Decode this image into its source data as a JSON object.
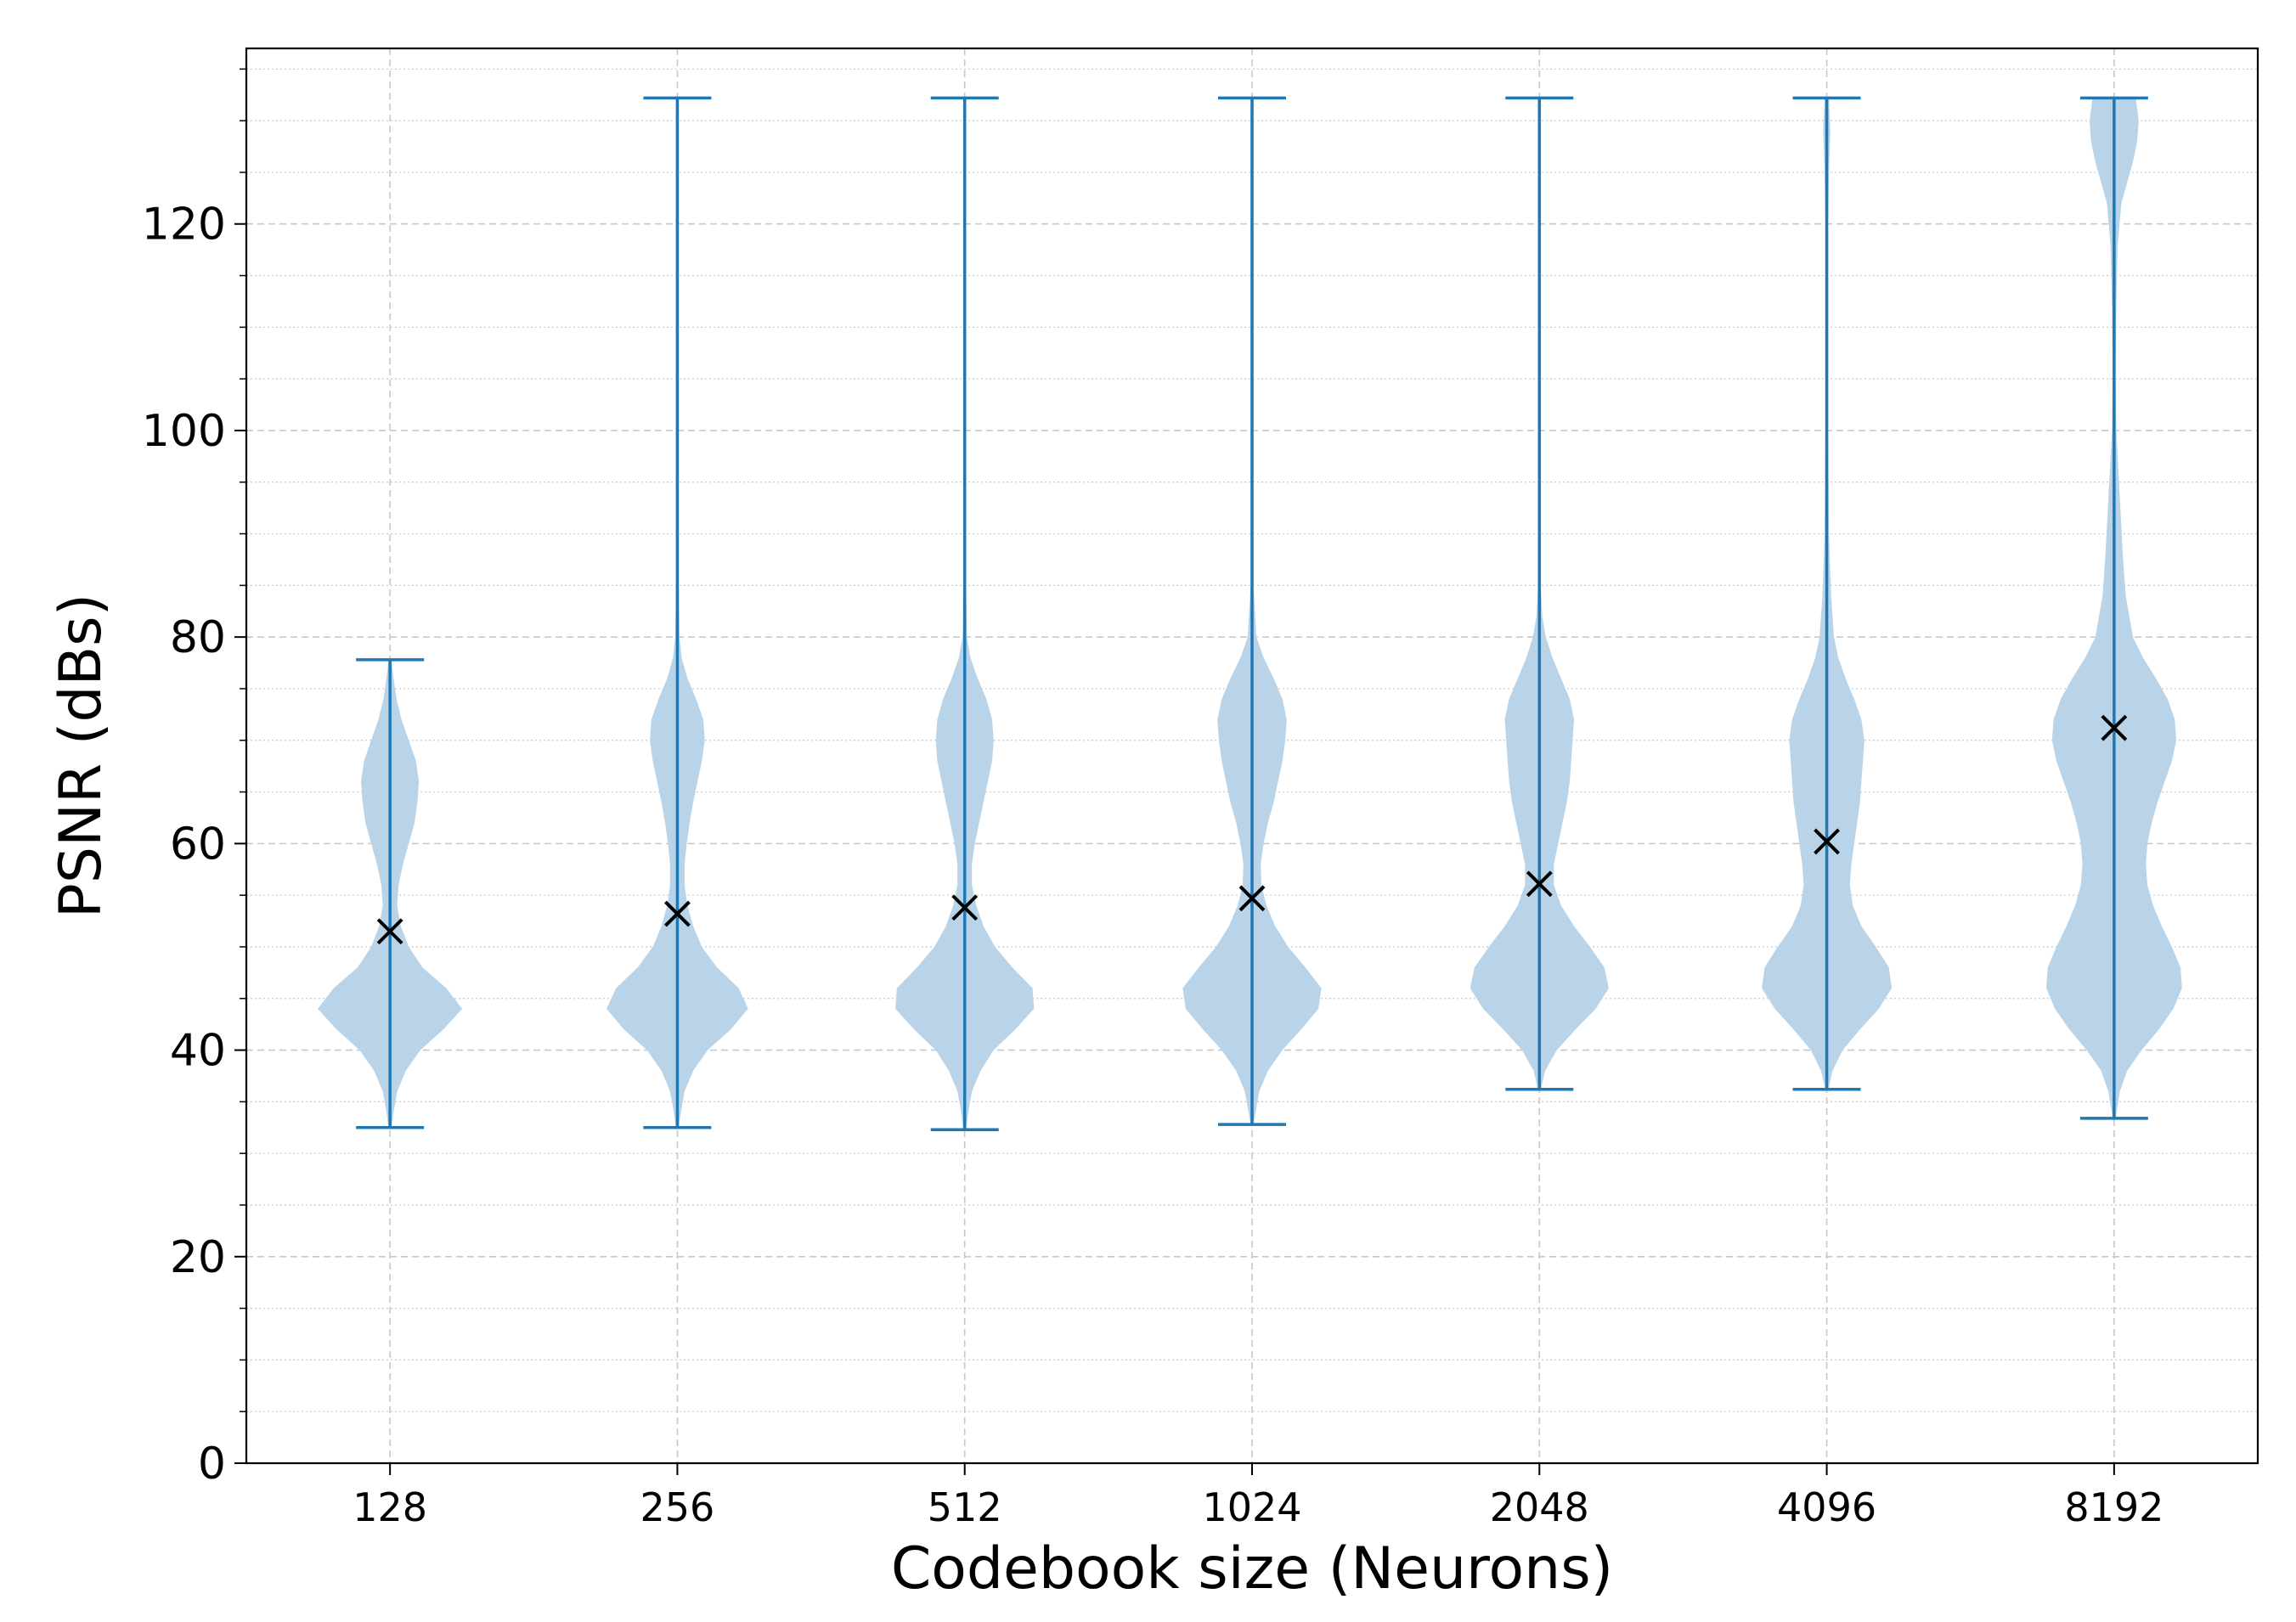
{
  "chart_data": {
    "type": "violin",
    "xlabel": "Codebook size (Neurons)",
    "ylabel": "PSNR (dBs)",
    "categories": [
      "128",
      "256",
      "512",
      "1024",
      "2048",
      "4096",
      "8192"
    ],
    "ylim": [
      0,
      137
    ],
    "yticks": [
      0,
      20,
      40,
      60,
      80,
      100,
      120
    ],
    "y_minor_step": 5,
    "grid": true,
    "colors": {
      "violin_fill": "#b9d4e8",
      "violin_line": "#1f77b4",
      "mean_marker": "#000000",
      "grid": "#c8c8c8"
    },
    "series": [
      {
        "category": "128",
        "min": 32.5,
        "max": 77.8,
        "mean": 51.5,
        "density": [
          [
            32.5,
            0.02
          ],
          [
            34,
            0.05
          ],
          [
            36,
            0.1
          ],
          [
            38,
            0.22
          ],
          [
            40,
            0.42
          ],
          [
            42,
            0.74
          ],
          [
            44,
            1.0
          ],
          [
            46,
            0.78
          ],
          [
            48,
            0.45
          ],
          [
            50,
            0.26
          ],
          [
            52,
            0.15
          ],
          [
            54,
            0.1
          ],
          [
            56,
            0.12
          ],
          [
            58,
            0.18
          ],
          [
            60,
            0.26
          ],
          [
            62,
            0.34
          ],
          [
            64,
            0.38
          ],
          [
            66,
            0.4
          ],
          [
            68,
            0.36
          ],
          [
            70,
            0.26
          ],
          [
            72,
            0.16
          ],
          [
            74,
            0.09
          ],
          [
            76,
            0.05
          ],
          [
            77.8,
            0.02
          ]
        ]
      },
      {
        "category": "256",
        "min": 32.5,
        "max": 132.2,
        "mean": 53.2,
        "density": [
          [
            32.5,
            0.02
          ],
          [
            34,
            0.05
          ],
          [
            36,
            0.1
          ],
          [
            38,
            0.22
          ],
          [
            40,
            0.42
          ],
          [
            42,
            0.74
          ],
          [
            44,
            0.98
          ],
          [
            46,
            0.85
          ],
          [
            48,
            0.55
          ],
          [
            50,
            0.34
          ],
          [
            52,
            0.22
          ],
          [
            54,
            0.14
          ],
          [
            56,
            0.1
          ],
          [
            58,
            0.1
          ],
          [
            60,
            0.13
          ],
          [
            62,
            0.17
          ],
          [
            64,
            0.22
          ],
          [
            66,
            0.28
          ],
          [
            68,
            0.34
          ],
          [
            70,
            0.38
          ],
          [
            72,
            0.36
          ],
          [
            74,
            0.26
          ],
          [
            76,
            0.14
          ],
          [
            78,
            0.06
          ],
          [
            80,
            0.03
          ],
          [
            85,
            0.02
          ],
          [
            132.2,
            0.02
          ]
        ]
      },
      {
        "category": "512",
        "min": 32.3,
        "max": 132.2,
        "mean": 53.8,
        "density": [
          [
            32.3,
            0.02
          ],
          [
            34,
            0.05
          ],
          [
            36,
            0.1
          ],
          [
            38,
            0.22
          ],
          [
            40,
            0.4
          ],
          [
            42,
            0.7
          ],
          [
            44,
            0.96
          ],
          [
            46,
            0.94
          ],
          [
            48,
            0.66
          ],
          [
            50,
            0.42
          ],
          [
            52,
            0.26
          ],
          [
            54,
            0.16
          ],
          [
            56,
            0.1
          ],
          [
            58,
            0.1
          ],
          [
            60,
            0.14
          ],
          [
            62,
            0.2
          ],
          [
            64,
            0.26
          ],
          [
            66,
            0.32
          ],
          [
            68,
            0.38
          ],
          [
            70,
            0.4
          ],
          [
            72,
            0.38
          ],
          [
            74,
            0.3
          ],
          [
            76,
            0.18
          ],
          [
            78,
            0.08
          ],
          [
            80,
            0.03
          ],
          [
            85,
            0.02
          ],
          [
            132.2,
            0.02
          ]
        ]
      },
      {
        "category": "1024",
        "min": 32.8,
        "max": 132.2,
        "mean": 54.7,
        "density": [
          [
            32.8,
            0.02
          ],
          [
            34,
            0.05
          ],
          [
            36,
            0.1
          ],
          [
            38,
            0.22
          ],
          [
            40,
            0.42
          ],
          [
            42,
            0.68
          ],
          [
            44,
            0.92
          ],
          [
            46,
            0.96
          ],
          [
            48,
            0.74
          ],
          [
            50,
            0.5
          ],
          [
            52,
            0.32
          ],
          [
            54,
            0.2
          ],
          [
            56,
            0.13
          ],
          [
            58,
            0.12
          ],
          [
            60,
            0.16
          ],
          [
            62,
            0.22
          ],
          [
            64,
            0.3
          ],
          [
            66,
            0.36
          ],
          [
            68,
            0.42
          ],
          [
            70,
            0.46
          ],
          [
            72,
            0.48
          ],
          [
            74,
            0.42
          ],
          [
            76,
            0.3
          ],
          [
            78,
            0.16
          ],
          [
            80,
            0.06
          ],
          [
            85,
            0.02
          ],
          [
            132.2,
            0.02
          ]
        ]
      },
      {
        "category": "2048",
        "min": 36.2,
        "max": 132.2,
        "mean": 56.1,
        "density": [
          [
            36.2,
            0.02
          ],
          [
            38,
            0.08
          ],
          [
            40,
            0.24
          ],
          [
            42,
            0.5
          ],
          [
            44,
            0.78
          ],
          [
            46,
            0.96
          ],
          [
            48,
            0.9
          ],
          [
            50,
            0.7
          ],
          [
            52,
            0.48
          ],
          [
            54,
            0.3
          ],
          [
            56,
            0.2
          ],
          [
            58,
            0.2
          ],
          [
            60,
            0.26
          ],
          [
            62,
            0.32
          ],
          [
            64,
            0.38
          ],
          [
            66,
            0.42
          ],
          [
            68,
            0.44
          ],
          [
            70,
            0.46
          ],
          [
            72,
            0.48
          ],
          [
            74,
            0.42
          ],
          [
            76,
            0.3
          ],
          [
            78,
            0.18
          ],
          [
            80,
            0.09
          ],
          [
            82,
            0.04
          ],
          [
            85,
            0.02
          ],
          [
            132.2,
            0.02
          ]
        ]
      },
      {
        "category": "4096",
        "min": 36.2,
        "max": 132.2,
        "mean": 60.2,
        "density": [
          [
            36.2,
            0.02
          ],
          [
            38,
            0.08
          ],
          [
            40,
            0.22
          ],
          [
            42,
            0.46
          ],
          [
            44,
            0.72
          ],
          [
            46,
            0.9
          ],
          [
            48,
            0.86
          ],
          [
            50,
            0.68
          ],
          [
            52,
            0.48
          ],
          [
            54,
            0.36
          ],
          [
            56,
            0.32
          ],
          [
            58,
            0.34
          ],
          [
            60,
            0.38
          ],
          [
            62,
            0.42
          ],
          [
            64,
            0.46
          ],
          [
            66,
            0.48
          ],
          [
            68,
            0.5
          ],
          [
            70,
            0.52
          ],
          [
            72,
            0.48
          ],
          [
            74,
            0.38
          ],
          [
            76,
            0.26
          ],
          [
            78,
            0.16
          ],
          [
            80,
            0.1
          ],
          [
            84,
            0.06
          ],
          [
            90,
            0.03
          ],
          [
            100,
            0.02
          ],
          [
            120,
            0.02
          ],
          [
            125,
            0.03
          ],
          [
            129,
            0.05
          ],
          [
            132.2,
            0.03
          ]
        ]
      },
      {
        "category": "8192",
        "min": 33.4,
        "max": 132.2,
        "mean": 71.2,
        "density": [
          [
            33.4,
            0.02
          ],
          [
            36,
            0.08
          ],
          [
            38,
            0.18
          ],
          [
            40,
            0.38
          ],
          [
            42,
            0.62
          ],
          [
            44,
            0.82
          ],
          [
            46,
            0.94
          ],
          [
            48,
            0.92
          ],
          [
            50,
            0.8
          ],
          [
            52,
            0.66
          ],
          [
            54,
            0.54
          ],
          [
            56,
            0.46
          ],
          [
            58,
            0.44
          ],
          [
            60,
            0.46
          ],
          [
            62,
            0.52
          ],
          [
            64,
            0.6
          ],
          [
            66,
            0.7
          ],
          [
            68,
            0.8
          ],
          [
            70,
            0.86
          ],
          [
            72,
            0.84
          ],
          [
            74,
            0.74
          ],
          [
            76,
            0.58
          ],
          [
            78,
            0.4
          ],
          [
            80,
            0.26
          ],
          [
            84,
            0.16
          ],
          [
            88,
            0.12
          ],
          [
            92,
            0.09
          ],
          [
            96,
            0.06
          ],
          [
            100,
            0.03
          ],
          [
            106,
            0.02
          ],
          [
            112,
            0.03
          ],
          [
            118,
            0.05
          ],
          [
            122,
            0.1
          ],
          [
            124,
            0.18
          ],
          [
            126,
            0.26
          ],
          [
            128,
            0.32
          ],
          [
            130,
            0.34
          ],
          [
            132.2,
            0.3
          ]
        ]
      }
    ]
  }
}
